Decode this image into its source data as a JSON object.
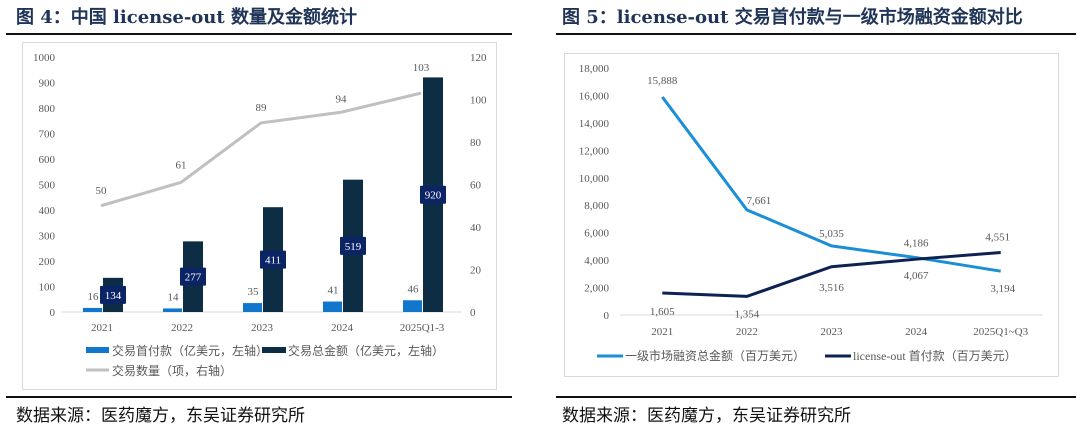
{
  "left": {
    "title": "图 4：中国 license-out 数量及金额统计",
    "footer": "数据来源：医药魔方，东吴证券研究所"
  },
  "right": {
    "title": "图 5：license-out 交易首付款与一级市场融资金额对比",
    "footer": "数据来源：医药魔方，东吴证券研究所"
  },
  "chart_data": [
    {
      "type": "bar",
      "categories": [
        "2021",
        "2022",
        "2023",
        "2024",
        "2025Q1-3"
      ],
      "series": [
        {
          "name": "交易首付款（亿美元，左轴）",
          "kind": "bar",
          "axis": "left",
          "color": "#1177cc",
          "values": [
            16,
            14,
            35,
            41,
            46
          ]
        },
        {
          "name": "交易总金额（亿美元，左轴）",
          "kind": "bar",
          "axis": "left",
          "color": "#0d2d45",
          "values": [
            134,
            277,
            411,
            519,
            920
          ]
        },
        {
          "name": "交易数量（项，右轴）",
          "kind": "line",
          "axis": "right",
          "color": "#c0c0c0",
          "values": [
            50,
            61,
            89,
            94,
            103
          ]
        }
      ],
      "ylim": [
        0,
        1000
      ],
      "yticks": [
        "0",
        "100",
        "200",
        "300",
        "400",
        "500",
        "600",
        "700",
        "800",
        "900",
        "1000"
      ],
      "y2lim": [
        0,
        120
      ],
      "y2ticks": [
        "0",
        "20",
        "40",
        "60",
        "80",
        "100",
        "120"
      ],
      "legend": "bottom"
    },
    {
      "type": "line",
      "categories": [
        "2021",
        "2022",
        "2023",
        "2024",
        "2025Q1~Q3"
      ],
      "series": [
        {
          "name": "一级市场融资总金额（百万美元）",
          "color": "#1a8fd6",
          "values": [
            15888,
            7661,
            5035,
            4186,
            3194
          ],
          "labels": [
            "15,888",
            "7,661",
            "5,035",
            "4,186",
            "3,194"
          ]
        },
        {
          "name": "license-out 首付款（百万美元）",
          "color": "#0d2253",
          "values": [
            1605,
            1354,
            3516,
            4067,
            4551
          ],
          "labels": [
            "1,605",
            "1,354",
            "3,516",
            "4,067",
            "4,551"
          ]
        }
      ],
      "ylim": [
        0,
        18000
      ],
      "yticks": [
        "0",
        "2,000",
        "4,000",
        "6,000",
        "8,000",
        "10,000",
        "12,000",
        "14,000",
        "16,000",
        "18,000"
      ],
      "legend": "bottom"
    }
  ]
}
